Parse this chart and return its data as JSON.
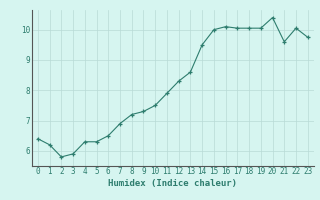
{
  "x": [
    0,
    1,
    2,
    3,
    4,
    5,
    6,
    7,
    8,
    9,
    10,
    11,
    12,
    13,
    14,
    15,
    16,
    17,
    18,
    19,
    20,
    21,
    22,
    23
  ],
  "y": [
    6.4,
    6.2,
    5.8,
    5.9,
    6.3,
    6.3,
    6.5,
    6.9,
    7.2,
    7.3,
    7.5,
    7.9,
    8.3,
    8.6,
    9.5,
    10.0,
    10.1,
    10.05,
    10.05,
    10.05,
    10.4,
    9.6,
    10.05,
    9.75
  ],
  "line_color": "#2e7d6e",
  "marker": "+",
  "marker_size": 3,
  "background_color": "#d6f5f0",
  "grid_color": "#b8dad6",
  "xlabel": "Humidex (Indice chaleur)",
  "xlim": [
    -0.5,
    23.5
  ],
  "ylim": [
    5.5,
    10.65
  ],
  "yticks": [
    6,
    7,
    8,
    9,
    10
  ],
  "xticks": [
    0,
    1,
    2,
    3,
    4,
    5,
    6,
    7,
    8,
    9,
    10,
    11,
    12,
    13,
    14,
    15,
    16,
    17,
    18,
    19,
    20,
    21,
    22,
    23
  ],
  "tick_label_fontsize": 5.5,
  "xlabel_fontsize": 6.5,
  "xlabel_color": "#2e7d6e",
  "tick_color": "#2e7d6e",
  "line_width": 0.8,
  "spine_color": "#555555"
}
